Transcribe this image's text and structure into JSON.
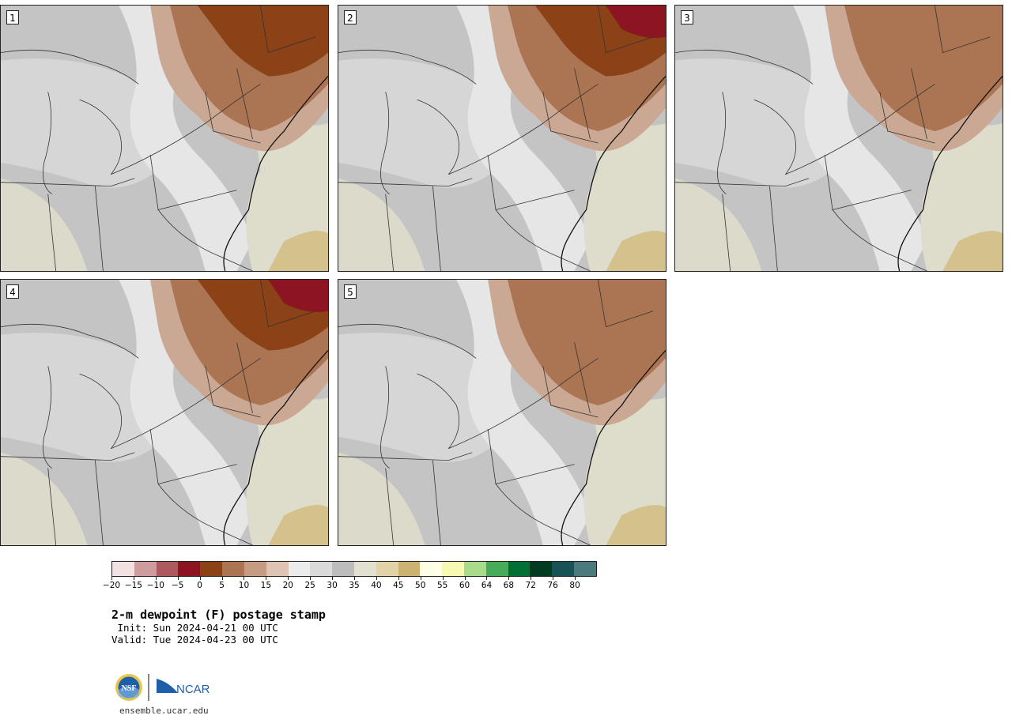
{
  "title": "2-m dewpoint (F) postage stamp",
  "init_label": " Init: Sun 2024-04-21 00 UTC",
  "valid_label": "Valid: Tue 2024-04-23 00 UTC",
  "site": "ensemble.ucar.edu",
  "logo": {
    "nsf": "NSF",
    "ncar": "NCAR"
  },
  "members": [
    {
      "label": "1",
      "dry_level": 2
    },
    {
      "label": "2",
      "dry_level": 3
    },
    {
      "label": "3",
      "dry_level": 1
    },
    {
      "label": "4",
      "dry_level": 3
    },
    {
      "label": "5",
      "dry_level": 1
    }
  ],
  "colorbar": {
    "ticks": [
      "−20",
      "−15",
      "−10",
      "−5",
      "0",
      "5",
      "10",
      "15",
      "20",
      "25",
      "30",
      "35",
      "40",
      "45",
      "50",
      "55",
      "60",
      "64",
      "68",
      "72",
      "76",
      "80"
    ],
    "colors": [
      "#f2e1e1",
      "#cf9c9e",
      "#ab5a5e",
      "#8b1621",
      "#8b4216",
      "#ab7453",
      "#c59c82",
      "#dfc4b4",
      "#ececec",
      "#dadada",
      "#bdbdbd",
      "#e2e0cf",
      "#e2d2a8",
      "#cdb373",
      "#fefee4",
      "#f7f9b2",
      "#a8dc8c",
      "#47ab5a",
      "#027035",
      "#013b22",
      "#185256",
      "#4a797e"
    ]
  }
}
